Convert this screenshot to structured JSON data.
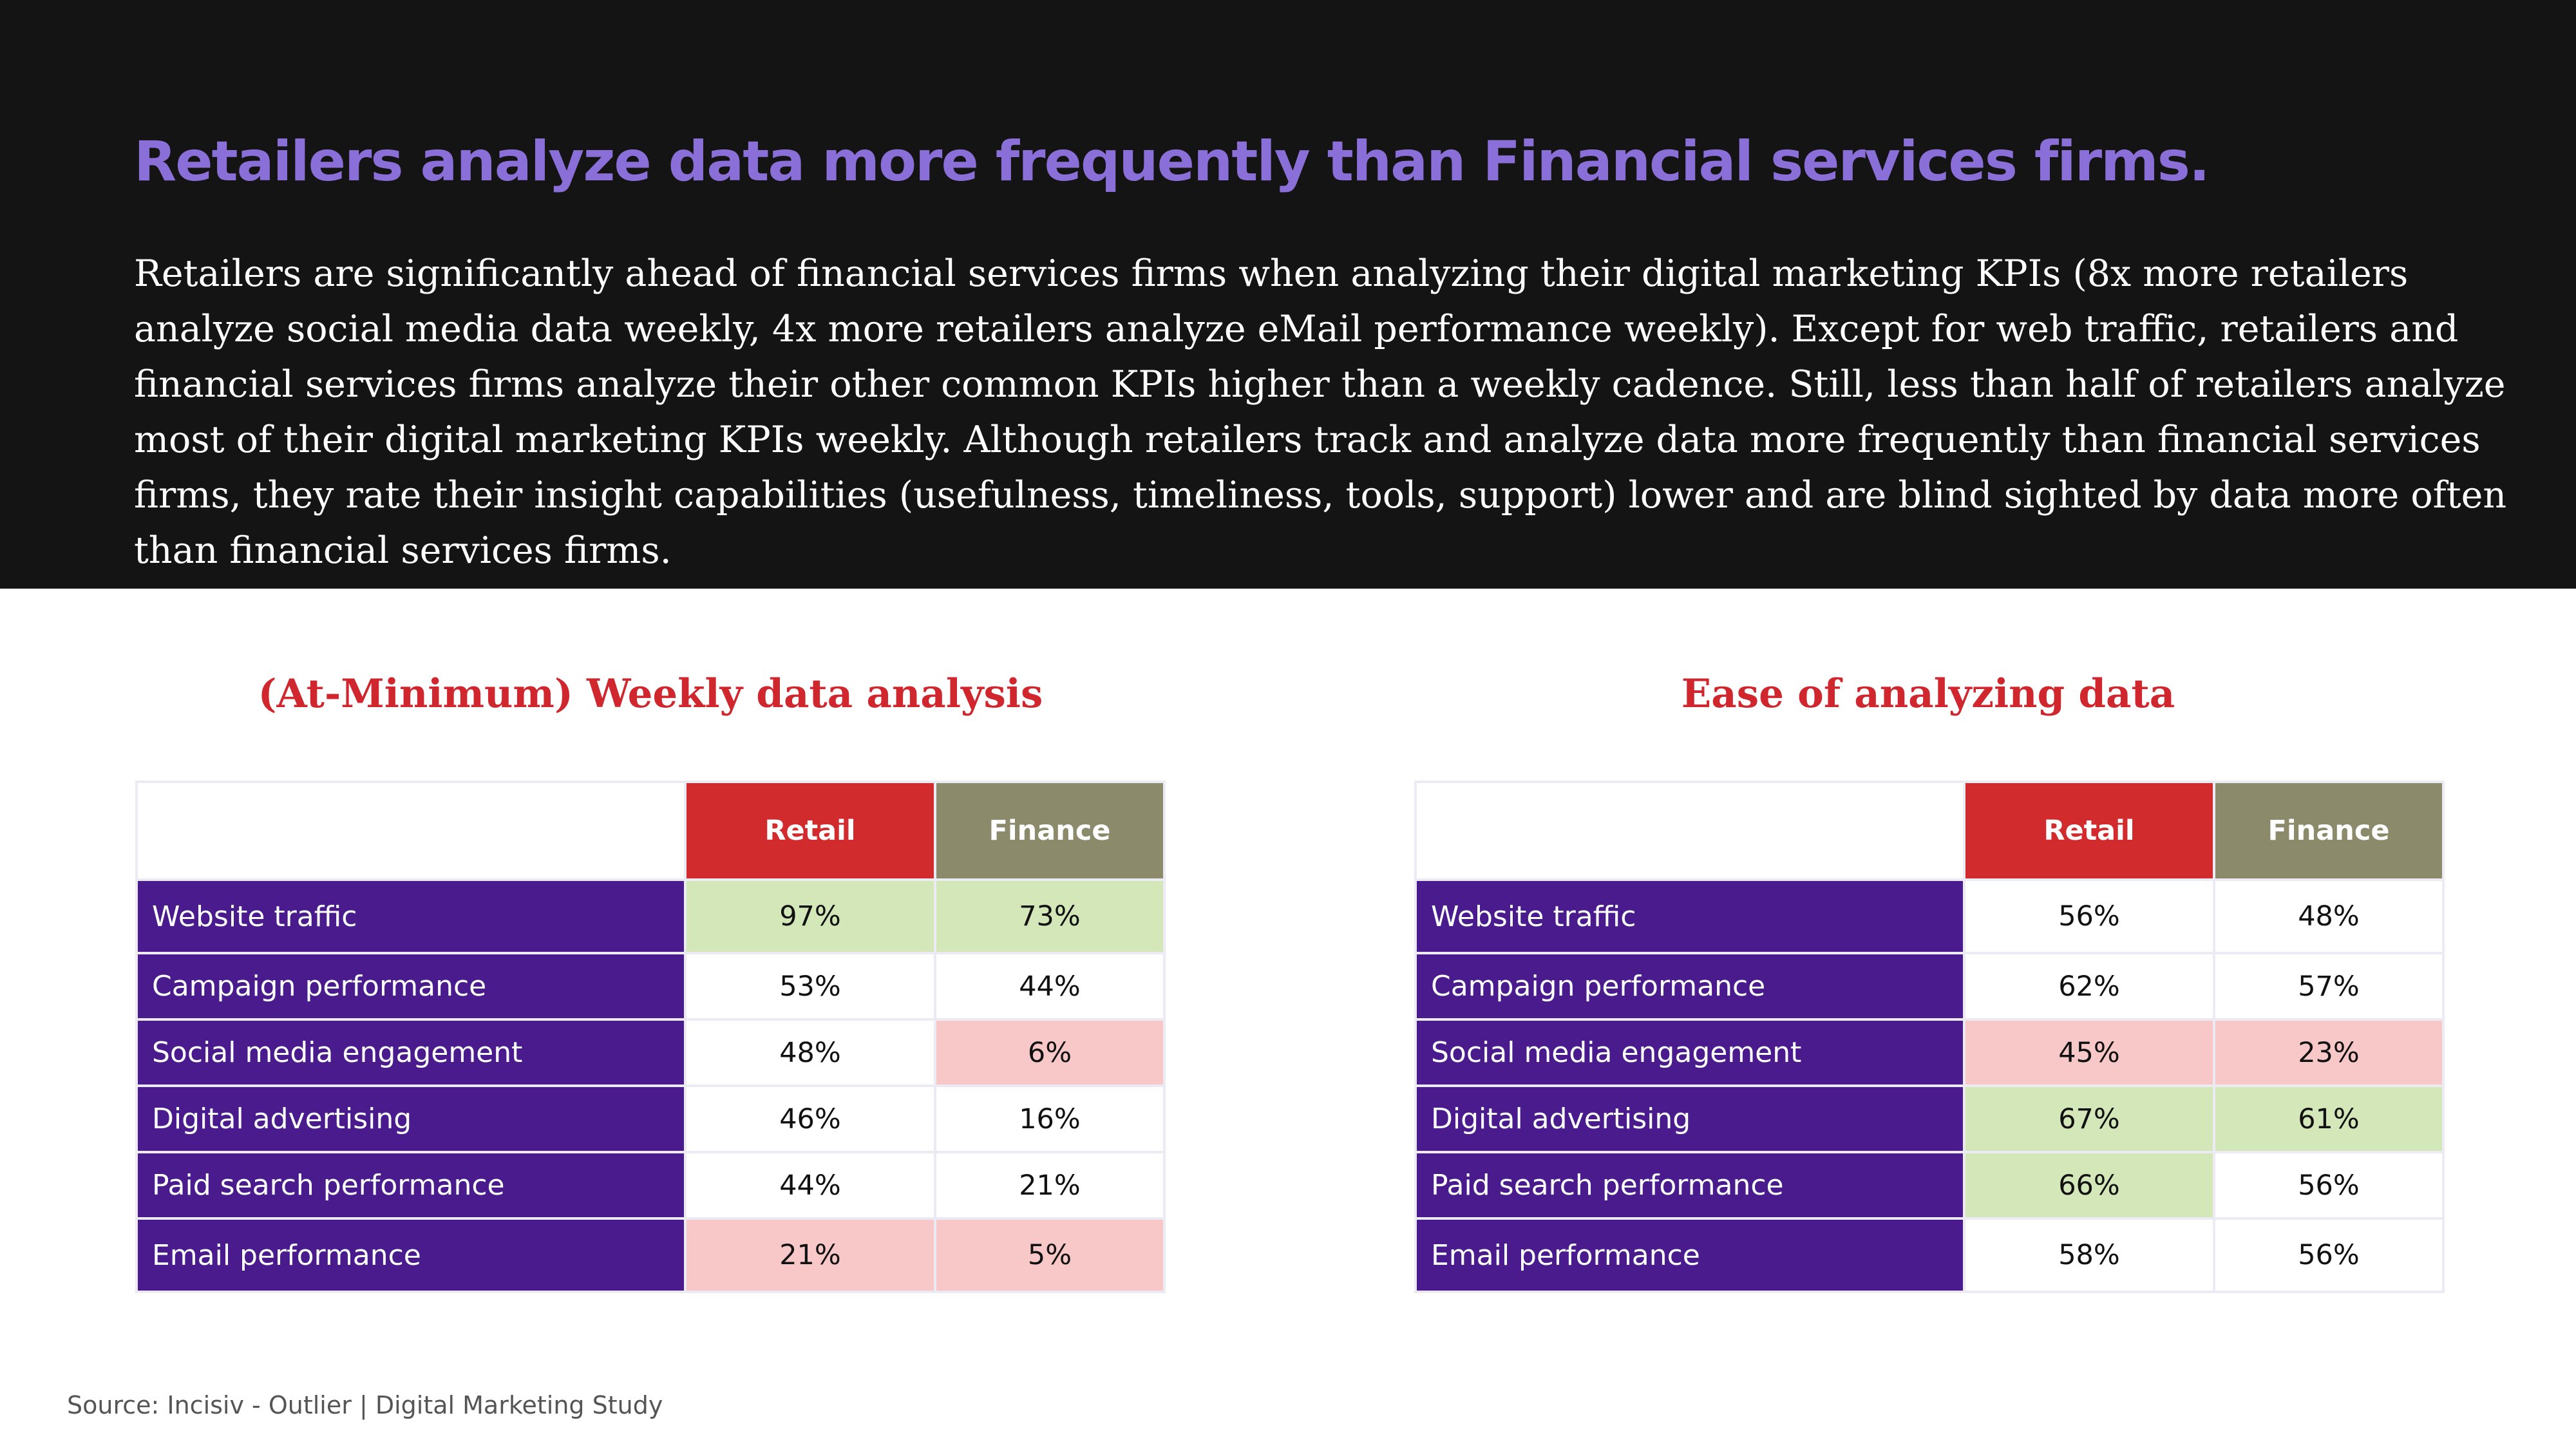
{
  "headline": "Retailers analyze data more frequently than Financial services firms.",
  "intro": "Retailers are significantly ahead of financial services firms when analyzing their digital marketing KPIs (8x more retailers analyze social media data weekly, 4x more retailers analyze eMail performance weekly). Except for web traffic, retailers and financial services firms analyze their other common KPIs higher than a weekly cadence. Still, less than half of retailers analyze most of their digital marketing KPIs weekly. Although retailers track and analyze data more frequently than financial services firms, they rate their insight capabilities (usefulness, timeliness, tools, support) lower and are blind sighted by data more often than financial services firms.",
  "colors": {
    "header_bg": "#141414",
    "headline": "#8b6fd8",
    "panel_title": "#d0272f",
    "row_label_bg": "#4a1b8d",
    "retail_header": "#d12b2e",
    "finance_header": "#8b8a6b",
    "highlight_high": "#d3e7b8",
    "highlight_low": "#f8c8c8"
  },
  "left_panel": {
    "title": "(At-Minimum) Weekly data analysis",
    "columns": [
      "Retail",
      "Finance"
    ],
    "rows": [
      {
        "label": "Website traffic",
        "retail": "97%",
        "finance": "73%",
        "retail_highlight": "high",
        "finance_highlight": "high"
      },
      {
        "label": "Campaign performance",
        "retail": "53%",
        "finance": "44%",
        "retail_highlight": "none",
        "finance_highlight": "none"
      },
      {
        "label": "Social media engagement",
        "retail": "48%",
        "finance": "6%",
        "retail_highlight": "none",
        "finance_highlight": "low"
      },
      {
        "label": "Digital advertising",
        "retail": "46%",
        "finance": "16%",
        "retail_highlight": "none",
        "finance_highlight": "none"
      },
      {
        "label": "Paid search performance",
        "retail": "44%",
        "finance": "21%",
        "retail_highlight": "none",
        "finance_highlight": "none"
      },
      {
        "label": "Email performance",
        "retail": "21%",
        "finance": "5%",
        "retail_highlight": "low",
        "finance_highlight": "low"
      }
    ]
  },
  "right_panel": {
    "title": "Ease of analyzing data",
    "columns": [
      "Retail",
      "Finance"
    ],
    "rows": [
      {
        "label": "Website traffic",
        "retail": "56%",
        "finance": "48%",
        "retail_highlight": "none",
        "finance_highlight": "none"
      },
      {
        "label": "Campaign performance",
        "retail": "62%",
        "finance": "57%",
        "retail_highlight": "none",
        "finance_highlight": "none"
      },
      {
        "label": "Social media engagement",
        "retail": "45%",
        "finance": "23%",
        "retail_highlight": "low",
        "finance_highlight": "low"
      },
      {
        "label": "Digital advertising",
        "retail": "67%",
        "finance": "61%",
        "retail_highlight": "high",
        "finance_highlight": "high"
      },
      {
        "label": "Paid search performance",
        "retail": "66%",
        "finance": "56%",
        "retail_highlight": "high",
        "finance_highlight": "none"
      },
      {
        "label": "Email performance",
        "retail": "58%",
        "finance": "56%",
        "retail_highlight": "none",
        "finance_highlight": "none"
      }
    ]
  },
  "source": "Source: Incisiv - Outlier | Digital Marketing Study"
}
